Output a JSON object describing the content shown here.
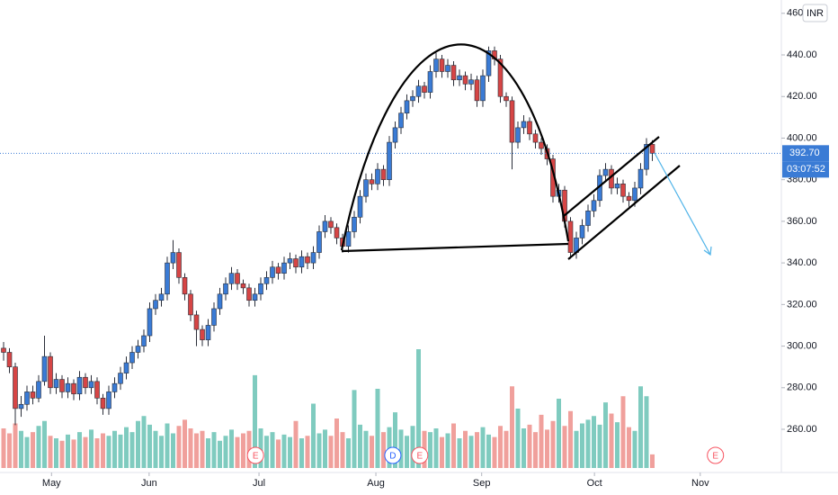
{
  "chart_data": {
    "type": "candlestick",
    "currency": "INR",
    "open": [
      299,
      297,
      290,
      270,
      272,
      278,
      275,
      283,
      295,
      280,
      284,
      278,
      282,
      277,
      285,
      280,
      283,
      275,
      270,
      278,
      282,
      287,
      292,
      297,
      300,
      305,
      318,
      322,
      325,
      340,
      345,
      333,
      325,
      315,
      308,
      303,
      310,
      318,
      325,
      330,
      335,
      330,
      328,
      322,
      325,
      330,
      333,
      338,
      335,
      340,
      342,
      338,
      343,
      340,
      345,
      355,
      360,
      357,
      352,
      348,
      355,
      362,
      372,
      380,
      378,
      385,
      380,
      398,
      405,
      412,
      418,
      420,
      425,
      422,
      432,
      438,
      432,
      435,
      428,
      430,
      426,
      428,
      418,
      430,
      442,
      438,
      420,
      418,
      398,
      405,
      408,
      402,
      398,
      395,
      390,
      372,
      375,
      360,
      345,
      352,
      358,
      365,
      370,
      382,
      385,
      376,
      378,
      372,
      370,
      376,
      385,
      397
    ],
    "high": [
      302,
      299,
      292,
      276,
      281,
      281,
      286,
      305,
      297,
      287,
      286,
      285,
      284,
      288,
      287,
      286,
      285,
      277,
      281,
      285,
      290,
      295,
      300,
      303,
      308,
      321,
      325,
      328,
      343,
      351,
      347,
      335,
      327,
      317,
      310,
      313,
      321,
      328,
      333,
      338,
      337,
      332,
      330,
      328,
      333,
      336,
      341,
      340,
      343,
      345,
      344,
      346,
      345,
      348,
      358,
      363,
      362,
      359,
      354,
      358,
      365,
      375,
      383,
      383,
      388,
      387,
      401,
      408,
      415,
      421,
      423,
      428,
      427,
      435,
      441,
      440,
      438,
      437,
      433,
      432,
      431,
      430,
      433,
      444,
      444,
      440,
      422,
      420,
      408,
      411,
      410,
      404,
      400,
      397,
      392,
      378,
      377,
      362,
      355,
      361,
      368,
      373,
      385,
      388,
      387,
      381,
      380,
      374,
      379,
      388,
      400,
      399
    ],
    "low": [
      293,
      287,
      262,
      266,
      269,
      272,
      273,
      281,
      277,
      277,
      275,
      275,
      274,
      274,
      277,
      277,
      272,
      267,
      267,
      275,
      279,
      284,
      289,
      294,
      297,
      302,
      315,
      319,
      322,
      337,
      330,
      322,
      312,
      300,
      300,
      300,
      307,
      315,
      322,
      327,
      327,
      325,
      319,
      319,
      322,
      327,
      330,
      332,
      332,
      337,
      335,
      335,
      337,
      337,
      342,
      352,
      354,
      349,
      345,
      345,
      352,
      359,
      369,
      375,
      375,
      377,
      377,
      395,
      402,
      409,
      415,
      417,
      419,
      419,
      429,
      429,
      429,
      425,
      425,
      423,
      423,
      415,
      415,
      427,
      435,
      417,
      415,
      385,
      395,
      402,
      399,
      395,
      392,
      387,
      369,
      369,
      357,
      342,
      342,
      349,
      355,
      362,
      367,
      379,
      373,
      373,
      369,
      367,
      367,
      373,
      382,
      389
    ],
    "close": [
      297,
      290,
      270,
      272,
      278,
      275,
      283,
      295,
      280,
      284,
      278,
      282,
      277,
      285,
      280,
      283,
      275,
      270,
      278,
      282,
      287,
      292,
      297,
      300,
      305,
      318,
      322,
      325,
      340,
      345,
      333,
      325,
      315,
      308,
      303,
      310,
      318,
      325,
      330,
      335,
      330,
      328,
      322,
      325,
      330,
      333,
      338,
      335,
      340,
      342,
      338,
      343,
      340,
      345,
      355,
      360,
      357,
      352,
      348,
      355,
      362,
      372,
      380,
      378,
      385,
      380,
      398,
      405,
      412,
      418,
      420,
      425,
      422,
      432,
      438,
      432,
      435,
      428,
      430,
      426,
      428,
      418,
      430,
      442,
      438,
      420,
      418,
      398,
      405,
      408,
      402,
      398,
      395,
      390,
      372,
      375,
      360,
      345,
      352,
      358,
      365,
      370,
      382,
      385,
      376,
      378,
      372,
      370,
      376,
      385,
      397,
      392.7
    ],
    "volume": [
      3.2,
      2.8,
      3.6,
      3.0,
      2.5,
      2.9,
      3.4,
      3.8,
      2.6,
      2.4,
      2.2,
      2.7,
      2.3,
      2.9,
      2.5,
      3.1,
      2.4,
      2.8,
      2.6,
      3.0,
      2.7,
      3.3,
      2.9,
      3.8,
      4.2,
      3.5,
      3.0,
      2.6,
      3.6,
      2.8,
      3.4,
      3.9,
      3.2,
      2.8,
      3.0,
      2.4,
      2.9,
      2.2,
      2.6,
      3.1,
      2.5,
      2.8,
      3.0,
      7.5,
      3.2,
      2.6,
      2.9,
      2.3,
      2.7,
      2.5,
      3.8,
      2.4,
      2.6,
      5.2,
      2.8,
      3.1,
      2.6,
      4.0,
      2.9,
      2.4,
      6.3,
      3.5,
      3.0,
      2.6,
      6.4,
      2.9,
      3.3,
      4.5,
      3.1,
      2.6,
      3.4,
      9.6,
      3.0,
      2.9,
      3.2,
      2.5,
      2.8,
      3.6,
      2.4,
      3.0,
      2.6,
      2.9,
      3.3,
      2.7,
      2.5,
      3.4,
      3.0,
      6.6,
      4.8,
      3.2,
      3.5,
      2.9,
      4.3,
      3.1,
      3.8,
      5.6,
      3.4,
      4.6,
      3.0,
      3.6,
      3.9,
      4.2,
      3.5,
      5.3,
      4.4,
      3.7,
      5.8,
      3.3,
      3.0,
      6.6,
      5.8,
      1.1
    ],
    "up_color": "#3a7bd5",
    "down_color": "#d64545",
    "volume_up_color": "#7fcbbf",
    "volume_down_color": "#f0a09c",
    "ylim": [
      241.4,
      466.4
    ],
    "yticks": [
      {
        "value": 260,
        "label": "260.00"
      },
      {
        "value": 280,
        "label": "280.00"
      },
      {
        "value": 300,
        "label": "300.00"
      },
      {
        "value": 320,
        "label": "320.00"
      },
      {
        "value": 340,
        "label": "340.00"
      },
      {
        "value": 360,
        "label": "360.00"
      },
      {
        "value": 380,
        "label": "380.00"
      },
      {
        "value": 400,
        "label": "400.00"
      },
      {
        "value": 420,
        "label": "420.00"
      },
      {
        "value": 440,
        "label": "440.00"
      },
      {
        "value": 460,
        "label": "460.00"
      }
    ],
    "xticks": [
      {
        "value": 8.2,
        "label": "May"
      },
      {
        "value": 24.9,
        "label": "Jun"
      },
      {
        "value": 43.7,
        "label": "Jul"
      },
      {
        "value": 63.7,
        "label": "Aug"
      },
      {
        "value": 81.8,
        "label": "Sep"
      },
      {
        "value": 101.1,
        "label": "Oct"
      },
      {
        "value": 119.2,
        "label": "Nov"
      }
    ],
    "last_price_label": "392.70",
    "countdown": "03:07:52",
    "events": [
      {
        "label": "E",
        "index": 43.1
      },
      {
        "label": "D",
        "index": 66.6
      },
      {
        "label": "E",
        "index": 71.2
      },
      {
        "label": "E",
        "index": 121.8
      }
    ],
    "grid": false
  }
}
